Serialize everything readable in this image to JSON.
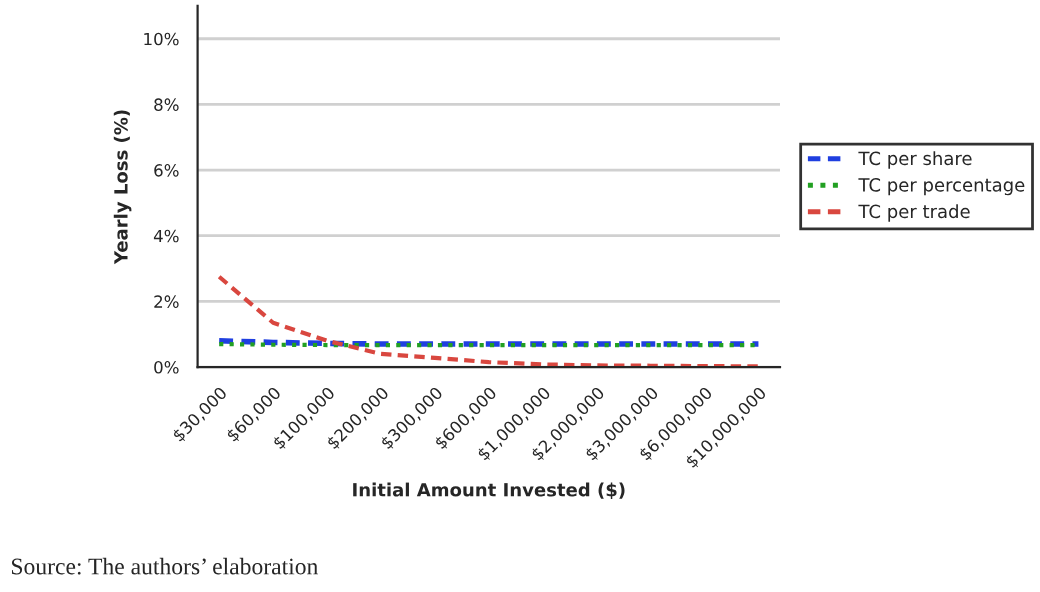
{
  "chart_data": {
    "type": "line",
    "xlabel": "Initial Amount Invested ($)",
    "ylabel": "Yearly Loss (%)",
    "categories": [
      "$30,000",
      "$60,000",
      "$100,000",
      "$200,000",
      "$300,000",
      "$600,000",
      "$1,000,000",
      "$2,000,000",
      "$3,000,000",
      "$6,000,000",
      "$10,000,000"
    ],
    "series": [
      {
        "name": "TC per share",
        "color": "#1f3fe0",
        "line_style": "dashed",
        "values": [
          0.8,
          0.75,
          0.72,
          0.7,
          0.7,
          0.7,
          0.7,
          0.7,
          0.7,
          0.7,
          0.7
        ]
      },
      {
        "name": "TC per percentage",
        "color": "#22a022",
        "line_style": "dotted",
        "values": [
          0.7,
          0.68,
          0.67,
          0.67,
          0.67,
          0.67,
          0.67,
          0.67,
          0.67,
          0.67,
          0.67
        ]
      },
      {
        "name": "TC per trade",
        "color": "#d9473f",
        "line_style": "dashed",
        "values": [
          2.75,
          1.35,
          0.8,
          0.4,
          0.28,
          0.15,
          0.08,
          0.05,
          0.04,
          0.03,
          0.02
        ]
      }
    ],
    "ylim": [
      0,
      11
    ],
    "yticks": [
      {
        "value": 0,
        "label": "0%"
      },
      {
        "value": 2,
        "label": "2%"
      },
      {
        "value": 4,
        "label": "4%"
      },
      {
        "value": 6,
        "label": "6%"
      },
      {
        "value": 8,
        "label": "8%"
      },
      {
        "value": 10,
        "label": "10%"
      }
    ],
    "grid": "y",
    "legend": "right",
    "marker": "none",
    "annotations": [
      "Source: The authors’ elaboration"
    ]
  }
}
